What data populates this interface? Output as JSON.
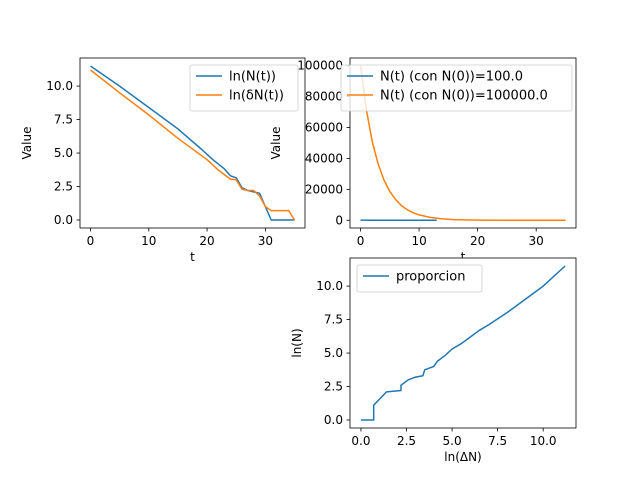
{
  "colors": {
    "c0": "#1f77b4",
    "c1": "#ff7f0e",
    "frame": "#000000",
    "legend_edge": "#cccccc"
  },
  "chart_data": [
    {
      "type": "line",
      "xlabel": "t",
      "ylabel": "Value",
      "xlim": [
        -1.8,
        36.8
      ],
      "ylim": [
        -0.6,
        12.1
      ],
      "xticks": [
        0,
        10,
        20,
        30
      ],
      "yticks": [
        0.0,
        2.5,
        5.0,
        7.5,
        10.0
      ],
      "ytick_labels": [
        "0.0",
        "2.5",
        "5.0",
        "7.5",
        "10.0"
      ],
      "legend_position": "top-right",
      "series": [
        {
          "name": "ln(N(t))",
          "color": "#1f77b4",
          "x": [
            0,
            5,
            10,
            15,
            19,
            21,
            23,
            24,
            25,
            26,
            27,
            28,
            29,
            31,
            32,
            33,
            34,
            35
          ],
          "y": [
            11.5,
            10.0,
            8.4,
            6.8,
            5.3,
            4.5,
            3.8,
            3.3,
            3.15,
            2.4,
            2.2,
            2.1,
            2.0,
            0.0,
            0.0,
            0.0,
            0.0,
            0.0
          ]
        },
        {
          "name": "ln(δN(t))",
          "color": "#ff7f0e",
          "x": [
            0,
            5,
            10,
            15,
            20,
            22,
            24,
            25,
            26,
            27,
            28,
            29,
            30,
            31,
            32,
            33,
            34,
            35
          ],
          "y": [
            11.2,
            9.5,
            7.85,
            6.1,
            4.5,
            3.7,
            3.05,
            3.0,
            2.3,
            2.2,
            2.2,
            1.8,
            1.0,
            0.7,
            0.7,
            0.7,
            0.7,
            0.0
          ]
        }
      ]
    },
    {
      "type": "line",
      "xlabel": "t",
      "ylabel": "Value",
      "xlim": [
        -1.8,
        36.8
      ],
      "ylim": [
        -5000,
        105000
      ],
      "xticks": [
        0,
        10,
        20,
        30
      ],
      "yticks": [
        0,
        20000,
        40000,
        60000,
        80000,
        100000
      ],
      "ytick_labels": [
        "0",
        "20000",
        "40000",
        "60000",
        "80000",
        "100000"
      ],
      "legend_position": "top-left",
      "series": [
        {
          "name": "N(t) (con N(0))=100.0",
          "color": "#1f77b4",
          "x": [
            0,
            2,
            4,
            6,
            8,
            10,
            12,
            13
          ],
          "y": [
            100,
            70,
            45,
            30,
            18,
            10,
            5,
            3
          ]
        },
        {
          "name": "N(t) (con N(0))=100000.0",
          "color": "#ff7f0e",
          "x": [
            0,
            1,
            2,
            3,
            4,
            5,
            6,
            7,
            8,
            9,
            10,
            12,
            14,
            16,
            18,
            20,
            25,
            30,
            35
          ],
          "y": [
            100000,
            71500,
            51000,
            36500,
            26000,
            18600,
            13300,
            9500,
            6800,
            4850,
            3470,
            1770,
            905,
            462,
            236,
            121,
            20,
            3,
            1
          ]
        }
      ]
    },
    {
      "type": "line",
      "xlabel": "ln(ΔN)",
      "ylabel": "ln(N)",
      "xlim": [
        -0.6,
        11.8
      ],
      "ylim": [
        -0.6,
        12.1
      ],
      "xticks": [
        0.0,
        2.5,
        5.0,
        7.5,
        10.0
      ],
      "xtick_labels": [
        "0.0",
        "2.5",
        "5.0",
        "7.5",
        "10.0"
      ],
      "yticks": [
        0.0,
        2.5,
        5.0,
        7.5,
        10.0
      ],
      "ytick_labels": [
        "0.0",
        "2.5",
        "5.0",
        "7.5",
        "10.0"
      ],
      "legend_position": "top-left",
      "series": [
        {
          "name": "proporcion",
          "color": "#1f77b4",
          "x": [
            0.0,
            0.7,
            0.7,
            1.4,
            2.2,
            2.2,
            2.6,
            3.0,
            3.4,
            3.5,
            4.0,
            4.2,
            4.6,
            5.0,
            5.5,
            6.0,
            6.5,
            7.0,
            8.0,
            9.0,
            10.0,
            11.2
          ],
          "y": [
            0.0,
            0.0,
            1.1,
            2.1,
            2.2,
            2.6,
            3.0,
            3.2,
            3.3,
            3.75,
            4.0,
            4.4,
            4.8,
            5.3,
            5.7,
            6.2,
            6.7,
            7.1,
            8.0,
            9.0,
            10.0,
            11.5
          ]
        }
      ]
    }
  ]
}
